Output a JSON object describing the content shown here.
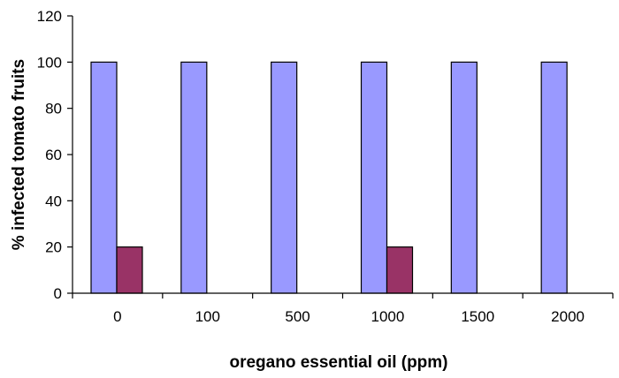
{
  "chart_data": {
    "type": "bar",
    "title": "",
    "xlabel": "oregano essential oil (ppm)",
    "ylabel": "% infected tomato fruits",
    "categories": [
      "0",
      "100",
      "500",
      "1000",
      "1500",
      "2000"
    ],
    "series": [
      {
        "values": [
          100,
          100,
          100,
          100,
          100,
          100
        ],
        "color": "#9999ff"
      },
      {
        "values": [
          20,
          0,
          0,
          20,
          0,
          0
        ],
        "color": "#993366"
      }
    ],
    "ylim": [
      0,
      120
    ],
    "yticks": [
      0,
      20,
      40,
      60,
      80,
      100,
      120
    ],
    "grid": false,
    "legend": "none"
  }
}
